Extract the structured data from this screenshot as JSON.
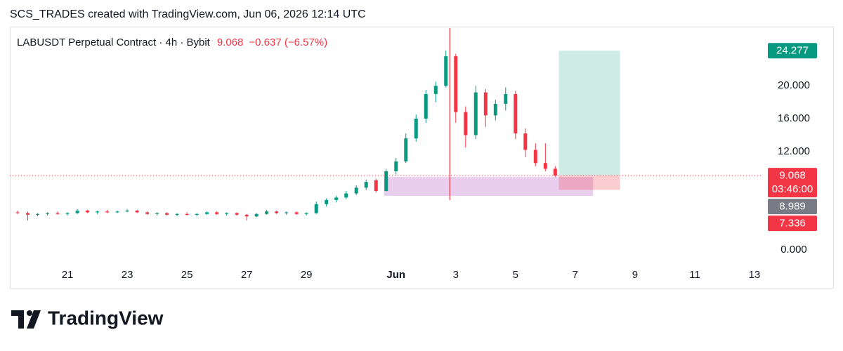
{
  "header": "SCS_TRADES created with TradingView.com, Jun 06, 2026 12:14 UTC",
  "footer": {
    "brand": "TradingView"
  },
  "chart_data": {
    "type": "candlestick",
    "legend": {
      "symbol": "LABUSDT Perpetual Contract · 4h · Bybit",
      "price": "9.068",
      "change": "−0.637 (−6.57%)"
    },
    "up_color": "#089981",
    "down_color": "#f23645",
    "xlim": [
      19.07,
      44.26
    ],
    "ylim": [
      -2.2,
      27.03
    ],
    "xticks": [
      21,
      23,
      25,
      27,
      29,
      {
        "value": 32,
        "label": "Jun"
      },
      {
        "value": 34,
        "label": "3"
      },
      {
        "value": 36,
        "label": "5"
      },
      {
        "value": 38,
        "label": "7"
      },
      {
        "value": 40,
        "label": "9"
      },
      {
        "value": 42,
        "label": "11"
      },
      {
        "value": 44,
        "label": "13"
      }
    ],
    "yticks": [
      {
        "value": 0,
        "label": "0.000"
      },
      {
        "value": 12,
        "label": "12.000"
      },
      {
        "value": 16,
        "label": "16.000"
      },
      {
        "value": 20,
        "label": "20.000"
      }
    ],
    "x": [
      19.33,
      19.67,
      20,
      20.33,
      20.67,
      21,
      21.33,
      21.67,
      22,
      22.33,
      22.67,
      23,
      23.33,
      23.67,
      24,
      24.33,
      24.67,
      25,
      25.33,
      25.67,
      26,
      26.33,
      26.67,
      27,
      27.33,
      27.67,
      28,
      28.33,
      28.67,
      29,
      29.33,
      29.67,
      30,
      30.33,
      30.67,
      31,
      31.33,
      31.67,
      32,
      32.33,
      32.67,
      33,
      33.33,
      33.67,
      34,
      34.33,
      34.67,
      35,
      35.33,
      35.67,
      36,
      36.33,
      36.67,
      37,
      37.33
    ],
    "open": [
      4.6,
      4.5,
      4.3,
      4.4,
      4.5,
      4.4,
      4.5,
      4.8,
      4.6,
      4.7,
      4.6,
      4.7,
      4.8,
      4.6,
      4.4,
      4.5,
      4.3,
      4.4,
      4.3,
      4.4,
      4.6,
      4.4,
      4.5,
      4.3,
      4.1,
      4.4,
      4.7,
      4.5,
      4.6,
      4.4,
      4.5,
      5.6,
      6.1,
      6.4,
      6.9,
      7.6,
      8.5,
      7.2,
      9.6,
      10.8,
      13.6,
      16.0,
      19.0,
      20.0,
      23.6,
      16.8,
      14.0,
      19.2,
      16.4,
      17.8,
      19.0,
      14.2,
      12.2,
      10.6,
      9.9
    ],
    "high": [
      4.8,
      4.7,
      4.5,
      4.6,
      4.7,
      4.6,
      5.0,
      4.9,
      4.8,
      4.9,
      4.8,
      5.0,
      4.9,
      4.7,
      4.6,
      4.6,
      4.5,
      4.6,
      4.5,
      4.7,
      4.7,
      4.6,
      4.6,
      4.4,
      4.5,
      4.9,
      4.8,
      4.7,
      4.7,
      4.6,
      5.9,
      6.3,
      6.6,
      7.2,
      7.9,
      8.6,
      8.7,
      9.9,
      11.2,
      14.2,
      16.5,
      19.5,
      20.5,
      24.3,
      23.9,
      17.5,
      20.0,
      19.6,
      18.3,
      19.8,
      19.4,
      14.8,
      13.0,
      13.0,
      10.2
    ],
    "low": [
      4.4,
      3.6,
      4.1,
      4.2,
      4.3,
      4.2,
      4.4,
      4.5,
      4.4,
      4.5,
      4.5,
      4.6,
      4.5,
      4.3,
      4.2,
      4.2,
      4.1,
      4.2,
      4.1,
      4.3,
      4.3,
      4.2,
      4.2,
      3.6,
      4.0,
      4.3,
      4.4,
      4.3,
      4.3,
      4.2,
      4.4,
      5.3,
      5.8,
      6.2,
      6.7,
      7.3,
      7.0,
      7.1,
      9.2,
      10.6,
      13.2,
      15.5,
      18.0,
      19.8,
      15.5,
      12.5,
      13.5,
      15.0,
      15.8,
      17.0,
      13.5,
      11.3,
      10.2,
      9.6,
      8.9
    ],
    "close": [
      4.5,
      4.3,
      4.4,
      4.5,
      4.4,
      4.5,
      4.8,
      4.6,
      4.7,
      4.6,
      4.7,
      4.8,
      4.6,
      4.4,
      4.5,
      4.3,
      4.4,
      4.3,
      4.4,
      4.6,
      4.4,
      4.5,
      4.3,
      4.1,
      4.4,
      4.7,
      4.5,
      4.6,
      4.4,
      4.5,
      5.6,
      6.1,
      6.4,
      6.9,
      7.6,
      8.3,
      7.2,
      9.6,
      10.8,
      13.6,
      16.0,
      19.0,
      20.0,
      23.6,
      16.8,
      14.0,
      19.2,
      16.4,
      17.8,
      19.0,
      14.2,
      12.2,
      10.6,
      9.9,
      9.068
    ],
    "vline": {
      "x": 33.8,
      "color": "#f23645"
    },
    "zone": {
      "x": [
        31.6,
        38.6
      ],
      "y": [
        6.6,
        8.9
      ],
      "color": "#ce93d8"
    },
    "position": {
      "x": [
        37.45,
        39.5
      ],
      "target": 24.277,
      "entry": 9.068,
      "stop": 7.336
    },
    "price_labels": [
      {
        "value": 24.277,
        "color": "#089981"
      },
      {
        "value": 9.068,
        "countdown": "03:46:00",
        "color": "#f23645"
      },
      {
        "value": 8.989,
        "color": "#787b86"
      },
      {
        "value": 7.336,
        "color": "#f23645"
      }
    ]
  }
}
